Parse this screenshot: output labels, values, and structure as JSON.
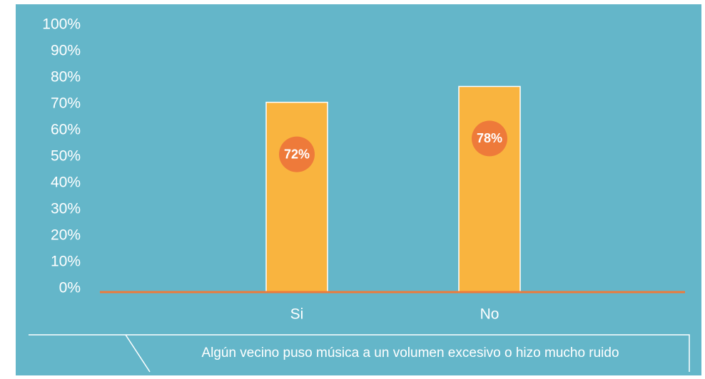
{
  "chart_data": {
    "type": "bar",
    "x_label": "Algún vecino puso música a un volumen excesivo o hizo mucho ruido",
    "categories": [
      "Si",
      "No"
    ],
    "values": [
      72,
      78
    ],
    "value_labels": [
      "72%",
      "78%"
    ],
    "color": "#f9b43f",
    "ylim": [
      0,
      100
    ],
    "yticks": [
      {
        "value": 0,
        "label": "0%"
      },
      {
        "value": 10,
        "label": "10%"
      },
      {
        "value": 20,
        "label": "20%"
      },
      {
        "value": 30,
        "label": "30%"
      },
      {
        "value": 40,
        "label": "40%"
      },
      {
        "value": 50,
        "label": "50%"
      },
      {
        "value": 60,
        "label": "60%"
      },
      {
        "value": 70,
        "label": "70%"
      },
      {
        "value": 80,
        "label": "80%"
      },
      {
        "value": 90,
        "label": "90%"
      },
      {
        "value": 100,
        "label": "100%"
      }
    ],
    "grid": false
  }
}
